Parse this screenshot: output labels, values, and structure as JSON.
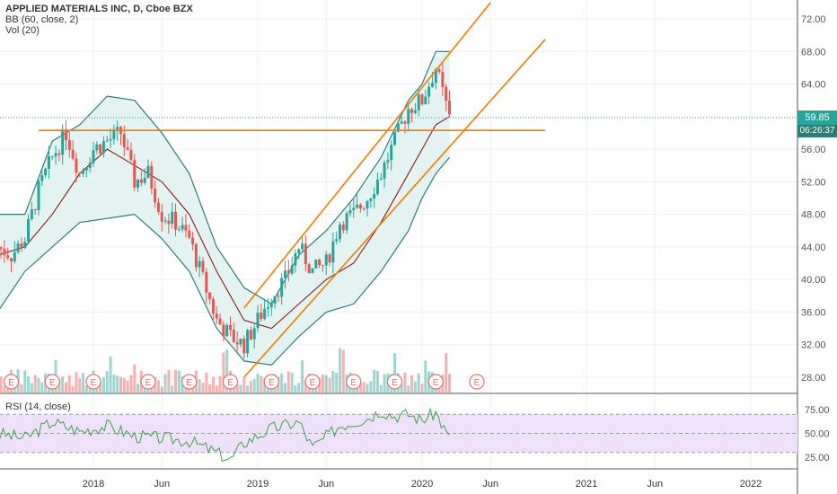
{
  "legend": {
    "title": "APPLIED MATERIALS INC, D, Cboe BZX",
    "bb": "BB (60, close, 2)",
    "vol": "Vol (20)",
    "rsi": "RSI (14, close)"
  },
  "last_price_label": "59.85",
  "countdown_label": "06:26:37",
  "colors": {
    "candle_up": "#26a69a",
    "candle_down": "#ef5350",
    "band": "#2e7d72",
    "band_fill": "#e0f2ef",
    "basis": "#8b1a1a",
    "trendline": "#f57c00",
    "rsi_line": "#43a047",
    "rsi_band": "#efe0fb",
    "earnings": "#e57373",
    "last_price": "#26a69a"
  },
  "chart_data": [
    {
      "type": "line",
      "panel": "price",
      "ylim": [
        26,
        74
      ],
      "y_ticks": [
        "28.00",
        "32.00",
        "36.00",
        "40.00",
        "44.00",
        "48.00",
        "52.00",
        "56.00",
        "60.00",
        "64.00",
        "68.00",
        "72.00"
      ],
      "x_ticks": [
        "2018",
        "Jun",
        "2019",
        "Jun",
        "2020",
        "Jun",
        "2021",
        "Jun",
        "2022"
      ],
      "series": [
        {
          "kind": "close",
          "points": [
            [
              "2017-06",
              44
            ],
            [
              "2017-07",
              43
            ],
            [
              "2017-08",
              45
            ],
            [
              "2017-09",
              51
            ],
            [
              "2017-10",
              55
            ],
            [
              "2017-11",
              58
            ],
            [
              "2017-12",
              53
            ],
            [
              "2018-01",
              56
            ],
            [
              "2018-02",
              57
            ],
            [
              "2018-03",
              58
            ],
            [
              "2018-04",
              52
            ],
            [
              "2018-05",
              53
            ],
            [
              "2018-06",
              48
            ],
            [
              "2018-07",
              47
            ],
            [
              "2018-08",
              45
            ],
            [
              "2018-09",
              40
            ],
            [
              "2018-10",
              35
            ],
            [
              "2018-11",
              33
            ],
            [
              "2018-12",
              32
            ],
            [
              "2019-01",
              35
            ],
            [
              "2019-02",
              38
            ],
            [
              "2019-03",
              40
            ],
            [
              "2019-04",
              44
            ],
            [
              "2019-05",
              41
            ],
            [
              "2019-06",
              42
            ],
            [
              "2019-07",
              47
            ],
            [
              "2019-08",
              48
            ],
            [
              "2019-09",
              50
            ],
            [
              "2019-10",
              53
            ],
            [
              "2019-11",
              57
            ],
            [
              "2019-12",
              61
            ],
            [
              "2020-01",
              62
            ],
            [
              "2020-02",
              66
            ],
            [
              "2020-03",
              59.85
            ]
          ]
        },
        {
          "kind": "bb_upper",
          "points": [
            [
              "2017-06",
              48
            ],
            [
              "2017-08",
              48
            ],
            [
              "2017-10",
              57
            ],
            [
              "2017-12",
              59
            ],
            [
              "2018-02",
              62.5
            ],
            [
              "2018-04",
              62
            ],
            [
              "2018-06",
              58
            ],
            [
              "2018-08",
              53
            ],
            [
              "2018-10",
              44
            ],
            [
              "2018-12",
              39
            ],
            [
              "2019-02",
              37
            ],
            [
              "2019-04",
              43
            ],
            [
              "2019-06",
              46
            ],
            [
              "2019-08",
              50
            ],
            [
              "2019-10",
              55
            ],
            [
              "2019-12",
              62
            ],
            [
              "2020-01",
              64
            ],
            [
              "2020-02",
              68
            ],
            [
              "2020-03",
              68
            ]
          ]
        },
        {
          "kind": "bb_basis",
          "points": [
            [
              "2017-06",
              43
            ],
            [
              "2017-08",
              44
            ],
            [
              "2017-10",
              48
            ],
            [
              "2017-12",
              53
            ],
            [
              "2018-02",
              56
            ],
            [
              "2018-04",
              54
            ],
            [
              "2018-06",
              52
            ],
            [
              "2018-08",
              48
            ],
            [
              "2018-10",
              41
            ],
            [
              "2018-12",
              35
            ],
            [
              "2019-02",
              34
            ],
            [
              "2019-04",
              37
            ],
            [
              "2019-06",
              40
            ],
            [
              "2019-08",
              42
            ],
            [
              "2019-10",
              47
            ],
            [
              "2019-12",
              53
            ],
            [
              "2020-01",
              56
            ],
            [
              "2020-02",
              59
            ],
            [
              "2020-03",
              60
            ]
          ]
        },
        {
          "kind": "bb_lower",
          "points": [
            [
              "2017-06",
              36
            ],
            [
              "2017-08",
              41
            ],
            [
              "2017-10",
              44
            ],
            [
              "2017-12",
              47
            ],
            [
              "2018-02",
              47.5
            ],
            [
              "2018-04",
              48
            ],
            [
              "2018-06",
              45
            ],
            [
              "2018-08",
              41
            ],
            [
              "2018-10",
              34
            ],
            [
              "2018-12",
              30
            ],
            [
              "2019-02",
              29.5
            ],
            [
              "2019-04",
              33
            ],
            [
              "2019-06",
              36
            ],
            [
              "2019-08",
              37
            ],
            [
              "2019-10",
              41
            ],
            [
              "2019-12",
              46
            ],
            [
              "2020-01",
              50
            ],
            [
              "2020-02",
              53
            ],
            [
              "2020-03",
              55
            ]
          ]
        }
      ],
      "trendlines": [
        {
          "name": "horizontal-resistance",
          "from": [
            "2017-09",
            58.3
          ],
          "to": [
            "2020-10",
            58.3
          ]
        },
        {
          "name": "channel-upper",
          "from": [
            "2018-12",
            36.5
          ],
          "to": [
            "2020-06",
            74
          ]
        },
        {
          "name": "channel-lower",
          "from": [
            "2018-12",
            28
          ],
          "to": [
            "2020-10",
            69.5
          ]
        }
      ],
      "last_price": 59.85,
      "earnings_markers": [
        "2017-07",
        "2017-10",
        "2018-01",
        "2018-05",
        "2018-08",
        "2018-11",
        "2019-02",
        "2019-05",
        "2019-08",
        "2019-11",
        "2020-02",
        "2020-05"
      ],
      "earnings_label": "E"
    },
    {
      "type": "line",
      "panel": "rsi",
      "ylim": [
        15,
        85
      ],
      "y_ticks": [
        "25.00",
        "50.00",
        "75.00"
      ],
      "band": [
        30,
        70
      ],
      "points": [
        [
          "2017-06",
          50
        ],
        [
          "2017-08",
          45
        ],
        [
          "2017-10",
          62
        ],
        [
          "2017-12",
          52
        ],
        [
          "2018-02",
          58
        ],
        [
          "2018-04",
          47
        ],
        [
          "2018-06",
          45
        ],
        [
          "2018-08",
          42
        ],
        [
          "2018-10",
          30
        ],
        [
          "2018-11",
          22
        ],
        [
          "2018-12",
          40
        ],
        [
          "2019-02",
          55
        ],
        [
          "2019-04",
          62
        ],
        [
          "2019-05",
          35
        ],
        [
          "2019-07",
          58
        ],
        [
          "2019-09",
          66
        ],
        [
          "2019-10",
          74
        ],
        [
          "2019-11",
          68
        ],
        [
          "2019-12",
          70
        ],
        [
          "2020-01",
          64
        ],
        [
          "2020-02",
          72
        ],
        [
          "2020-03",
          44
        ]
      ]
    }
  ]
}
